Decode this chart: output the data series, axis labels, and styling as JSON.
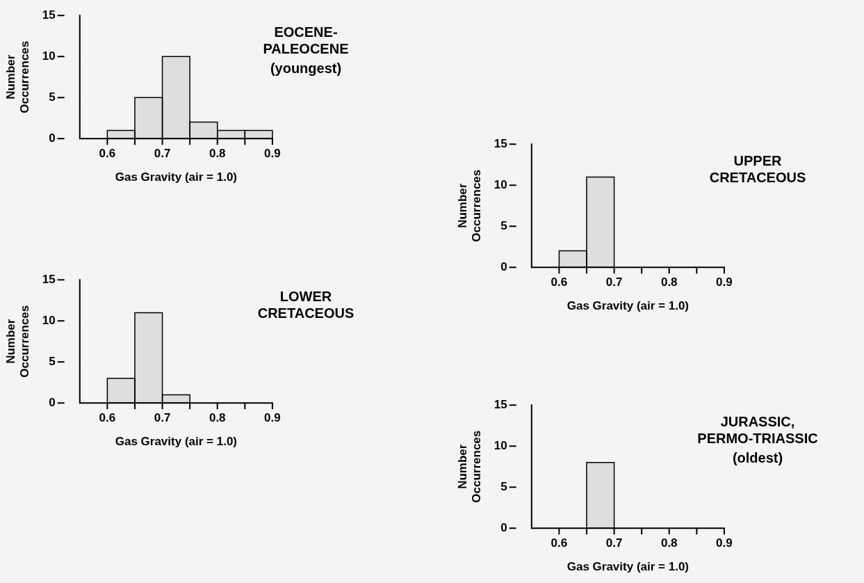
{
  "chart_data": [
    {
      "type": "histogram",
      "title": "EOCENE-\nPALEOCENE",
      "subtitle": "(youngest)",
      "xlabel": "Gas Gravity (air = 1.0)",
      "ylabel": "Number\nOccurrences",
      "bins": [
        0.6,
        0.65,
        0.7,
        0.75,
        0.8,
        0.85,
        0.9
      ],
      "values": [
        1,
        5,
        10,
        2,
        1,
        1
      ],
      "color": "#dedede",
      "xlim": [
        0.55,
        0.9
      ],
      "xticks": [
        0.6,
        {
          "value": 0.65,
          "label": null
        },
        0.7,
        {
          "value": 0.75,
          "label": null
        },
        0.8,
        {
          "value": 0.85,
          "label": null
        },
        0.9
      ],
      "ylim": [
        0,
        15
      ],
      "yticks": [
        0,
        5,
        10,
        15
      ]
    },
    {
      "type": "histogram",
      "title": "UPPER\nCRETACEOUS",
      "xlabel": "Gas Gravity (air = 1.0)",
      "ylabel": "Number\nOccurrences",
      "bins": [
        0.6,
        0.65,
        0.7,
        0.75,
        0.8,
        0.85,
        0.9
      ],
      "values": [
        2,
        11,
        0,
        0,
        0,
        0
      ],
      "color": "#dedede",
      "xlim": [
        0.55,
        0.9
      ],
      "xticks": [
        0.6,
        {
          "value": 0.65,
          "label": null
        },
        0.7,
        {
          "value": 0.75,
          "label": null
        },
        0.8,
        {
          "value": 0.85,
          "label": null
        },
        0.9
      ],
      "ylim": [
        0,
        15
      ],
      "yticks": [
        0,
        5,
        10,
        15
      ]
    },
    {
      "type": "histogram",
      "title": "LOWER\nCRETACEOUS",
      "xlabel": "Gas Gravity (air = 1.0)",
      "ylabel": "Number\nOccurrences",
      "bins": [
        0.6,
        0.65,
        0.7,
        0.75,
        0.8,
        0.85,
        0.9
      ],
      "values": [
        3,
        11,
        1,
        0,
        0,
        0
      ],
      "color": "#dedede",
      "xlim": [
        0.55,
        0.9
      ],
      "xticks": [
        0.6,
        {
          "value": 0.65,
          "label": null
        },
        0.7,
        {
          "value": 0.75,
          "label": null
        },
        0.8,
        {
          "value": 0.85,
          "label": null
        },
        0.9
      ],
      "ylim": [
        0,
        15
      ],
      "yticks": [
        0,
        5,
        10,
        15
      ]
    },
    {
      "type": "histogram",
      "title": "JURASSIC,\nPERMO-TRIASSIC",
      "subtitle": "(oldest)",
      "xlabel": "Gas Gravity (air = 1.0)",
      "ylabel": "Number\nOccurrences",
      "bins": [
        0.6,
        0.65,
        0.7,
        0.75,
        0.8,
        0.85,
        0.9
      ],
      "values": [
        0,
        8,
        0,
        0,
        0,
        0
      ],
      "color": "#dedede",
      "xlim": [
        0.55,
        0.9
      ],
      "xticks": [
        0.6,
        {
          "value": 0.65,
          "label": null
        },
        0.7,
        {
          "value": 0.75,
          "label": null
        },
        0.8,
        {
          "value": 0.85,
          "label": null
        },
        0.9
      ],
      "ylim": [
        0,
        15
      ],
      "yticks": [
        0,
        5,
        10,
        15
      ]
    }
  ]
}
